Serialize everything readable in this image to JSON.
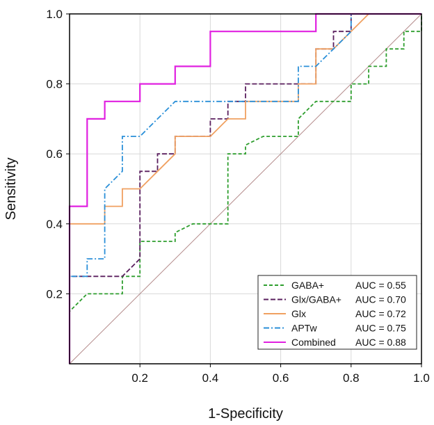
{
  "chart_data": {
    "type": "line",
    "xlabel": "1-Specificity",
    "ylabel": "Sensitivity",
    "xlim": [
      0,
      1
    ],
    "ylim": [
      0,
      1
    ],
    "x_ticks": [
      "0.2",
      "0.4",
      "0.6",
      "0.8",
      "1.0"
    ],
    "x_tick_values": [
      0.2,
      0.4,
      0.6,
      0.8,
      1.0
    ],
    "y_ticks": [
      "0.2",
      "0.4",
      "0.6",
      "0.8",
      "1.0"
    ],
    "y_tick_values": [
      0.2,
      0.4,
      0.6,
      0.8,
      1.0
    ],
    "grid": true,
    "legend_position": "bottom-right",
    "reference_line": {
      "x": [
        0,
        1
      ],
      "y": [
        0,
        1
      ],
      "color": "#b38a8a"
    },
    "series": [
      {
        "name": "GABA+",
        "auc_label": "AUC = 0.55",
        "color": "#2e9e2e",
        "dash": "5,3",
        "x": [
          0,
          0,
          0.05,
          0.05,
          0.15,
          0.15,
          0.2,
          0.2,
          0.3,
          0.3,
          0.35,
          0.35,
          0.45,
          0.45,
          0.5,
          0.5,
          0.55,
          0.55,
          0.65,
          0.65,
          0.7,
          0.7,
          0.8,
          0.8,
          0.85,
          0.85,
          0.9,
          0.9,
          0.95,
          0.95,
          1,
          1
        ],
        "y": [
          0,
          0.15,
          0.2,
          0.2,
          0.2,
          0.25,
          0.25,
          0.35,
          0.35,
          0.375,
          0.4,
          0.4,
          0.4,
          0.6,
          0.6,
          0.625,
          0.65,
          0.65,
          0.65,
          0.7,
          0.75,
          0.75,
          0.75,
          0.8,
          0.8,
          0.85,
          0.85,
          0.9,
          0.9,
          0.95,
          0.95,
          1
        ]
      },
      {
        "name": "Glx/GABA+",
        "auc_label": "AUC = 0.70",
        "color": "#5a1f5e",
        "dash": "7,3",
        "x": [
          0,
          0,
          0.15,
          0.15,
          0.2,
          0.2,
          0.25,
          0.25,
          0.3,
          0.3,
          0.35,
          0.35,
          0.4,
          0.4,
          0.45,
          0.45,
          0.5,
          0.5,
          0.65,
          0.65,
          0.7,
          0.7,
          0.75,
          0.75,
          0.8,
          0.8,
          1
        ],
        "y": [
          0,
          0.25,
          0.25,
          0.25,
          0.3,
          0.55,
          0.55,
          0.6,
          0.6,
          0.65,
          0.65,
          0.65,
          0.65,
          0.7,
          0.7,
          0.75,
          0.75,
          0.8,
          0.8,
          0.8,
          0.8,
          0.9,
          0.9,
          0.95,
          0.95,
          1,
          1
        ]
      },
      {
        "name": "Glx",
        "auc_label": "AUC = 0.72",
        "color": "#f0a060",
        "dash": "none",
        "x": [
          0,
          0,
          0.1,
          0.1,
          0.15,
          0.15,
          0.2,
          0.2,
          0.25,
          0.25,
          0.3,
          0.3,
          0.4,
          0.4,
          0.45,
          0.45,
          0.5,
          0.5,
          0.65,
          0.65,
          0.7,
          0.7,
          0.75,
          0.85,
          1
        ],
        "y": [
          0,
          0.4,
          0.4,
          0.45,
          0.45,
          0.5,
          0.5,
          0.5,
          0.55,
          0.55,
          0.6,
          0.65,
          0.65,
          0.65,
          0.7,
          0.7,
          0.7,
          0.75,
          0.75,
          0.8,
          0.8,
          0.9,
          0.9,
          1,
          1
        ]
      },
      {
        "name": "APTw",
        "auc_label": "AUC = 0.75",
        "color": "#2a8fd8",
        "dash": "8,3,2,3",
        "x": [
          0,
          0,
          0.05,
          0.05,
          0.1,
          0.1,
          0.15,
          0.15,
          0.2,
          0.2,
          0.25,
          0.3,
          0.65,
          0.65,
          0.7,
          0.7,
          0.75,
          0.75,
          0.8,
          0.8,
          1
        ],
        "y": [
          0,
          0.25,
          0.25,
          0.3,
          0.3,
          0.5,
          0.55,
          0.65,
          0.65,
          0.65,
          0.7,
          0.75,
          0.75,
          0.85,
          0.85,
          0.85,
          0.9,
          0.9,
          0.95,
          1,
          1
        ]
      },
      {
        "name": "Combined",
        "auc_label": "AUC = 0.88",
        "color": "#e020e0",
        "dash": "none",
        "x": [
          0,
          0,
          0.05,
          0.05,
          0.1,
          0.1,
          0.2,
          0.2,
          0.3,
          0.3,
          0.4,
          0.4,
          0.7,
          0.7,
          1
        ],
        "y": [
          0,
          0.45,
          0.45,
          0.7,
          0.7,
          0.75,
          0.75,
          0.8,
          0.8,
          0.85,
          0.85,
          0.95,
          0.95,
          1,
          1
        ]
      }
    ]
  }
}
